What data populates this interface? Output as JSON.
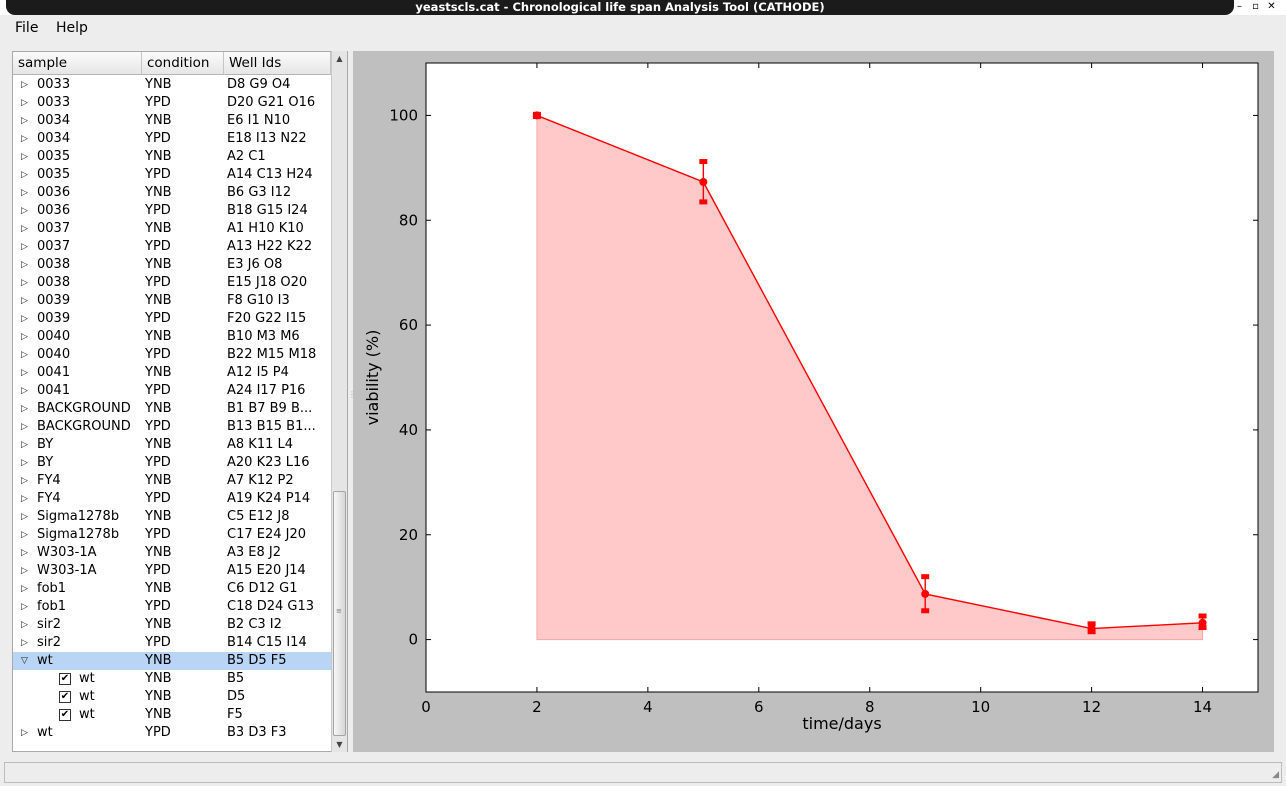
{
  "window": {
    "title": "yeastscls.cat - Chronological life span Analysis Tool (CATHODE)",
    "controls": [
      "–",
      "▫",
      "✕"
    ]
  },
  "menu": {
    "file": "File",
    "help": "Help"
  },
  "tree": {
    "columns": [
      "sample",
      "condition",
      "Well Ids"
    ],
    "rows": [
      {
        "sample": "0033",
        "condition": "YNB",
        "wells": "D8 G9 O4"
      },
      {
        "sample": "0033",
        "condition": "YPD",
        "wells": "D20 G21 O16"
      },
      {
        "sample": "0034",
        "condition": "YNB",
        "wells": "E6 I1 N10"
      },
      {
        "sample": "0034",
        "condition": "YPD",
        "wells": "E18 I13 N22"
      },
      {
        "sample": "0035",
        "condition": "YNB",
        "wells": "A2 C1"
      },
      {
        "sample": "0035",
        "condition": "YPD",
        "wells": "A14 C13 H24"
      },
      {
        "sample": "0036",
        "condition": "YNB",
        "wells": "B6 G3 I12"
      },
      {
        "sample": "0036",
        "condition": "YPD",
        "wells": "B18 G15 I24"
      },
      {
        "sample": "0037",
        "condition": "YNB",
        "wells": "A1 H10 K10"
      },
      {
        "sample": "0037",
        "condition": "YPD",
        "wells": "A13 H22 K22"
      },
      {
        "sample": "0038",
        "condition": "YNB",
        "wells": "E3 J6 O8"
      },
      {
        "sample": "0038",
        "condition": "YPD",
        "wells": "E15 J18 O20"
      },
      {
        "sample": "0039",
        "condition": "YNB",
        "wells": "F8 G10 I3"
      },
      {
        "sample": "0039",
        "condition": "YPD",
        "wells": "F20 G22 I15"
      },
      {
        "sample": "0040",
        "condition": "YNB",
        "wells": "B10 M3 M6"
      },
      {
        "sample": "0040",
        "condition": "YPD",
        "wells": "B22 M15 M18"
      },
      {
        "sample": "0041",
        "condition": "YNB",
        "wells": "A12 I5 P4"
      },
      {
        "sample": "0041",
        "condition": "YPD",
        "wells": "A24 I17 P16"
      },
      {
        "sample": "BACKGROUND",
        "condition": "YNB",
        "wells": "B1 B7 B9 B..."
      },
      {
        "sample": "BACKGROUND",
        "condition": "YPD",
        "wells": "B13 B15 B1..."
      },
      {
        "sample": "BY",
        "condition": "YNB",
        "wells": "A8 K11 L4"
      },
      {
        "sample": "BY",
        "condition": "YPD",
        "wells": "A20 K23 L16"
      },
      {
        "sample": "FY4",
        "condition": "YNB",
        "wells": "A7 K12 P2"
      },
      {
        "sample": "FY4",
        "condition": "YPD",
        "wells": "A19 K24 P14"
      },
      {
        "sample": "Sigma1278b",
        "condition": "YNB",
        "wells": "C5 E12 J8"
      },
      {
        "sample": "Sigma1278b",
        "condition": "YPD",
        "wells": "C17 E24 J20"
      },
      {
        "sample": "W303-1A",
        "condition": "YNB",
        "wells": "A3 E8 J2"
      },
      {
        "sample": "W303-1A",
        "condition": "YPD",
        "wells": "A15 E20 J14"
      },
      {
        "sample": "fob1",
        "condition": "YNB",
        "wells": "C6 D12 G1"
      },
      {
        "sample": "fob1",
        "condition": "YPD",
        "wells": "C18 D24 G13"
      },
      {
        "sample": "sir2",
        "condition": "YNB",
        "wells": "B2 C3 I2"
      },
      {
        "sample": "sir2",
        "condition": "YPD",
        "wells": "B14 C15 I14"
      },
      {
        "sample": "wt",
        "condition": "YNB",
        "wells": "B5 D5 F5",
        "expanded": true,
        "selected": true
      },
      {
        "sample": "wt",
        "condition": "YNB",
        "wells": "B5",
        "child": true,
        "checked": true
      },
      {
        "sample": "wt",
        "condition": "YNB",
        "wells": "D5",
        "child": true,
        "checked": true
      },
      {
        "sample": "wt",
        "condition": "YNB",
        "wells": "F5",
        "child": true,
        "checked": true
      },
      {
        "sample": "wt",
        "condition": "YPD",
        "wells": "B3 D3 F3"
      }
    ]
  },
  "chart_data": {
    "type": "line",
    "xlabel": "time/days",
    "ylabel": "viability (%)",
    "xlim": [
      0,
      15
    ],
    "ylim": [
      -10,
      110
    ],
    "xticks": [
      0,
      2,
      4,
      6,
      8,
      10,
      12,
      14
    ],
    "yticks": [
      0,
      20,
      40,
      60,
      80,
      100
    ],
    "fill_to_zero": true,
    "color": "#ff0000",
    "fill_color": "#ffc9c9",
    "series": [
      {
        "x": [
          2,
          5,
          9,
          12,
          14
        ],
        "y": [
          100,
          87.3,
          8.7,
          2.1,
          3.2
        ],
        "err_low": [
          99.8,
          83.5,
          5.5,
          1.5,
          2.3
        ],
        "err_high": [
          100.2,
          91.2,
          12.0,
          3.0,
          4.5
        ]
      }
    ]
  }
}
